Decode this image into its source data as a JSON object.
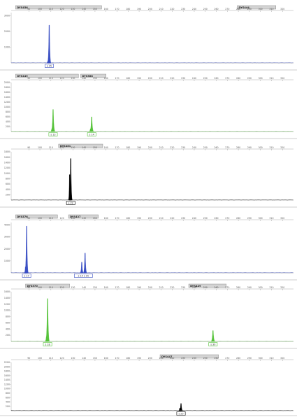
{
  "figure": {
    "panel_count": 6,
    "peak_label_style": "boxed-allele-call",
    "marker_bar_color": "#d4d4d4",
    "axis_color": "#a8a8a8",
    "baseline_color": "#7a7a7a",
    "separator_color": "#9a9a9a"
  },
  "chart_data": [
    {
      "type": "line",
      "title": "",
      "color": "#3a4fc4",
      "xlim": [
        74,
        330
      ],
      "ylim": [
        0,
        3200
      ],
      "x_ticks": [
        90,
        100,
        110,
        120,
        130,
        140,
        150,
        160,
        170,
        180,
        190,
        200,
        210,
        220,
        230,
        240,
        250,
        260,
        270,
        280,
        290,
        300,
        310,
        320
      ],
      "y_ticks": [
        1000,
        2000,
        3000
      ],
      "markers": [
        {
          "name": "DYS456",
          "start": 78,
          "end": 156
        },
        {
          "name": "DYS444",
          "start": 279,
          "end": 314
        }
      ],
      "peaks": [
        {
          "x": 108.5,
          "height": 2400,
          "width": 1.0
        },
        {
          "x": 107.5,
          "height": 150,
          "width": 0.8
        }
      ],
      "allele_labels": [
        {
          "x": 108.5,
          "text": "s 15"
        }
      ]
    },
    {
      "type": "line",
      "title": "",
      "color": "#56c33a",
      "xlim": [
        74,
        330
      ],
      "ylim": [
        0,
        2000
      ],
      "x_ticks": [
        90,
        100,
        110,
        120,
        130,
        140,
        150,
        160,
        170,
        180,
        190,
        200,
        210,
        220,
        230,
        240,
        250,
        260,
        270,
        280,
        290,
        300,
        310,
        320
      ],
      "y_ticks": [
        200,
        400,
        600,
        800,
        1000,
        1200,
        1400,
        1600,
        1800,
        2000
      ],
      "markers": [
        {
          "name": "DYS449",
          "start": 78,
          "end": 135
        },
        {
          "name": "DYS588",
          "start": 137,
          "end": 160
        }
      ],
      "peaks": [
        {
          "x": 112,
          "height": 900,
          "width": 1.1
        },
        {
          "x": 111,
          "height": 120,
          "width": 0.8
        },
        {
          "x": 147,
          "height": 600,
          "width": 1.1
        },
        {
          "x": 146,
          "height": 110,
          "width": 0.8
        }
      ],
      "allele_labels": [
        {
          "x": 112,
          "text": "s 13"
        },
        {
          "x": 147,
          "text": "s 14"
        }
      ]
    },
    {
      "type": "line",
      "title": "",
      "color": "#000000",
      "xlim": [
        74,
        330
      ],
      "ylim": [
        0,
        1800
      ],
      "x_ticks": [
        90,
        100,
        110,
        120,
        130,
        140,
        150,
        160,
        170,
        180,
        190,
        200,
        210,
        220,
        230,
        240,
        250,
        260,
        270,
        280,
        290,
        300,
        310,
        320
      ],
      "y_ticks": [
        200,
        400,
        600,
        800,
        1000,
        1200,
        1400,
        1600,
        1800
      ],
      "markers": [
        {
          "name": "DYS481",
          "start": 117,
          "end": 157
        }
      ],
      "peaks": [
        {
          "x": 128,
          "height": 1550,
          "width": 0.9
        },
        {
          "x": 127,
          "height": 950,
          "width": 0.7
        }
      ],
      "allele_labels": [
        {
          "x": 128,
          "text": "s 22"
        }
      ]
    },
    {
      "type": "line",
      "title": "",
      "color": "#3a4fc4",
      "xlim": [
        74,
        330
      ],
      "ylim": [
        0,
        4200
      ],
      "x_ticks": [
        90,
        100,
        110,
        120,
        130,
        140,
        150,
        160,
        170,
        180,
        190,
        200,
        210,
        220,
        230,
        240,
        250,
        260,
        270,
        280,
        290,
        300,
        310,
        320
      ],
      "y_ticks": [
        1000,
        2000,
        3000,
        4000
      ],
      "markers": [
        {
          "name": "DYS576",
          "start": 78,
          "end": 116
        },
        {
          "name": "DYS437",
          "start": 126,
          "end": 153
        }
      ],
      "peaks": [
        {
          "x": 88,
          "height": 3900,
          "width": 1.0
        },
        {
          "x": 87,
          "height": 500,
          "width": 0.7
        },
        {
          "x": 138,
          "height": 900,
          "width": 0.9
        },
        {
          "x": 141,
          "height": 1650,
          "width": 1.0
        }
      ],
      "allele_labels": [
        {
          "x": 88,
          "text": "s 17"
        },
        {
          "x": 139.5,
          "text": "s 14  s 15"
        }
      ]
    },
    {
      "type": "line",
      "title": "",
      "color": "#56c33a",
      "xlim": [
        74,
        330
      ],
      "ylim": [
        0,
        1600
      ],
      "x_ticks": [
        90,
        100,
        110,
        120,
        130,
        140,
        150,
        160,
        170,
        180,
        190,
        200,
        210,
        220,
        230,
        240,
        250,
        260,
        270,
        280,
        290,
        300,
        310,
        320
      ],
      "y_ticks": [
        200,
        400,
        600,
        800,
        1000,
        1200,
        1400,
        1600
      ],
      "markers": [
        {
          "name": "DYS570",
          "start": 87,
          "end": 127
        },
        {
          "name": "DYS449",
          "start": 235,
          "end": 269
        }
      ],
      "peaks": [
        {
          "x": 107,
          "height": 1380,
          "width": 1.1
        },
        {
          "x": 106,
          "height": 150,
          "width": 0.8
        },
        {
          "x": 257,
          "height": 350,
          "width": 1.1
        }
      ],
      "allele_labels": [
        {
          "x": 107,
          "text": "s 18"
        },
        {
          "x": 257,
          "text": "s 30"
        }
      ]
    },
    {
      "type": "line",
      "title": "",
      "color": "#000000",
      "xlim": [
        74,
        330
      ],
      "ylim": [
        0,
        2200
      ],
      "x_ticks": [
        90,
        100,
        110,
        120,
        130,
        140,
        150,
        160,
        170,
        180,
        190,
        200,
        210,
        220,
        230,
        240,
        250,
        260,
        270,
        280,
        290,
        300,
        310,
        320
      ],
      "y_ticks": [
        200,
        400,
        600,
        800,
        1000,
        1200,
        1400,
        1600,
        1800,
        2000,
        2200
      ],
      "markers": [
        {
          "name": "DYS447",
          "start": 209,
          "end": 262
        }
      ],
      "peaks": [
        {
          "x": 228,
          "height": 330,
          "width": 0.9
        },
        {
          "x": 227,
          "height": 120,
          "width": 0.7
        }
      ],
      "allele_labels": [
        {
          "x": 228,
          "text": "s 25"
        }
      ]
    }
  ]
}
